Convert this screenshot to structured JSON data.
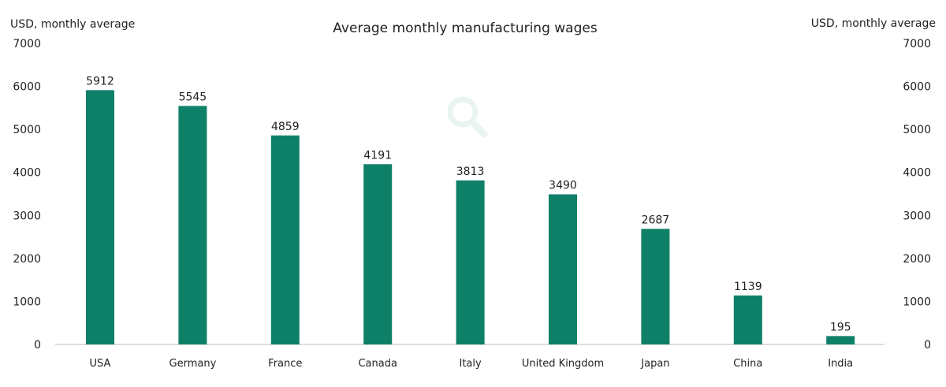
{
  "chart_data": {
    "type": "bar",
    "title": "Average monthly manufacturing wages",
    "ylabel_left": "USD, monthly average",
    "ylabel_right": "USD, monthly average",
    "xlabel": "",
    "categories": [
      "USA",
      "Germany",
      "France",
      "Canada",
      "Italy",
      "United Kingdom",
      "Japan",
      "China",
      "India"
    ],
    "values": [
      5912,
      5545,
      4859,
      4191,
      3813,
      3490,
      2687,
      1139,
      195
    ],
    "ylim": [
      0,
      7000
    ],
    "yticks": [
      0,
      1000,
      2000,
      3000,
      4000,
      5000,
      6000,
      7000
    ],
    "grid": false,
    "legend": "none",
    "bar_color": "#0f8068",
    "data_labels": true
  },
  "watermark_icon": "magnifier-icon"
}
